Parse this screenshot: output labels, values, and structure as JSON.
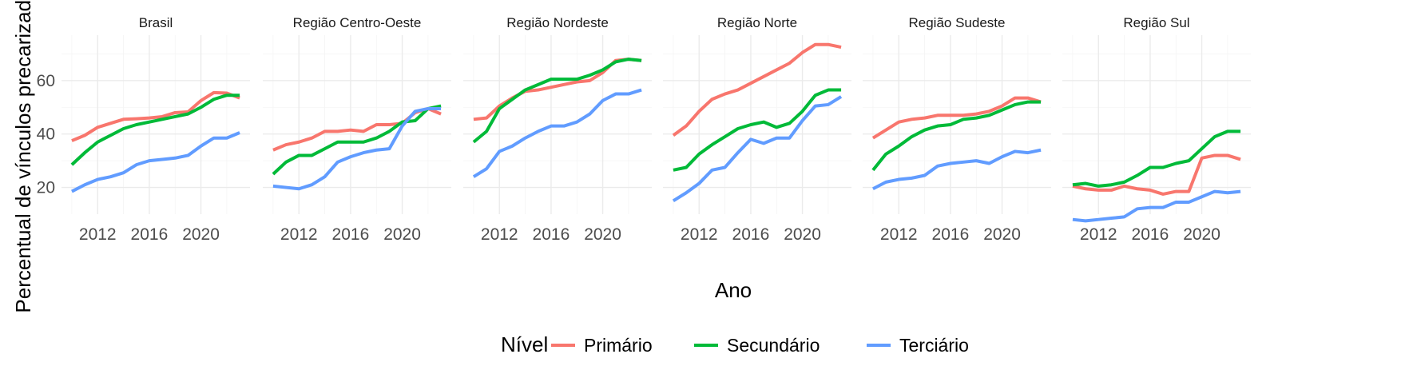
{
  "chart_data": {
    "type": "line",
    "xlabel": "Ano",
    "ylabel": "Percentual de vínculos precarizados",
    "x_ticks": [
      2012,
      2016,
      2020
    ],
    "y_ticks": [
      20,
      40,
      60
    ],
    "xlim": [
      2009.2,
      2023.8
    ],
    "ylim": [
      10,
      77
    ],
    "grid": true,
    "legend": {
      "title": "Nível",
      "position": "bottom",
      "entries": [
        {
          "name": "Primário",
          "color": "#F8766D"
        },
        {
          "name": "Secundário",
          "color": "#00BA38"
        },
        {
          "name": "Terciário",
          "color": "#619CFF"
        }
      ]
    },
    "x": [
      2010,
      2011,
      2012,
      2013,
      2014,
      2015,
      2016,
      2017,
      2018,
      2019,
      2020,
      2021,
      2022,
      2023
    ],
    "panels": [
      {
        "title": "Brasil",
        "series": [
          {
            "name": "Primário",
            "values": [
              37.5,
              39.5,
              42.5,
              44,
              45.5,
              45.7,
              46,
              46.5,
              48,
              48.3,
              52.5,
              55.5,
              55.3,
              53.5
            ]
          },
          {
            "name": "Secundário",
            "values": [
              28.5,
              33,
              37,
              39.5,
              42,
              43.5,
              44.5,
              45.5,
              46.5,
              47.5,
              50,
              53,
              54.5,
              54.5
            ]
          },
          {
            "name": "Terciário",
            "values": [
              18.5,
              21,
              23,
              24,
              25.5,
              28.5,
              30,
              30.5,
              31,
              32,
              35.5,
              38.5,
              38.5,
              40.5
            ]
          }
        ]
      },
      {
        "title": "Região Centro-Oeste",
        "series": [
          {
            "name": "Primário",
            "values": [
              34,
              36,
              37,
              38.5,
              41,
              41,
              41.5,
              41,
              43.5,
              43.5,
              44,
              48,
              49.5,
              47.5
            ]
          },
          {
            "name": "Secundário",
            "values": [
              25,
              29.5,
              32,
              32,
              34.5,
              37,
              37,
              37,
              38.5,
              41,
              44.5,
              45,
              49.5,
              50.5
            ]
          },
          {
            "name": "Terciário",
            "values": [
              20.5,
              20,
              19.5,
              21,
              24,
              29.5,
              31.5,
              33,
              34,
              34.5,
              43,
              48.5,
              49.5,
              49.5
            ]
          }
        ]
      },
      {
        "title": "Região Nordeste",
        "series": [
          {
            "name": "Primário",
            "values": [
              45.5,
              46,
              50.5,
              53.5,
              56,
              56.5,
              57.5,
              58.5,
              59.5,
              60,
              63,
              67.5,
              68,
              67.5
            ]
          },
          {
            "name": "Secundário",
            "values": [
              37,
              41,
              49.5,
              53,
              56.5,
              58.5,
              60.5,
              60.5,
              60.5,
              62,
              64,
              67,
              68,
              67.5
            ]
          },
          {
            "name": "Terciário",
            "values": [
              24,
              27,
              33.5,
              35.5,
              38.5,
              41,
              43,
              43,
              44.5,
              47.5,
              52.5,
              55,
              55,
              56.5
            ]
          }
        ]
      },
      {
        "title": "Região Norte",
        "series": [
          {
            "name": "Primário",
            "values": [
              39.5,
              43,
              48.5,
              53,
              55,
              56.5,
              59,
              61.5,
              64,
              66.5,
              70.5,
              73.5,
              73.5,
              72.5
            ]
          },
          {
            "name": "Secundário",
            "values": [
              26.5,
              27.5,
              32.5,
              36,
              39,
              42,
              43.5,
              44.5,
              42.5,
              44,
              48.5,
              54.5,
              56.5,
              56.5
            ]
          },
          {
            "name": "Terciário",
            "values": [
              15,
              18,
              21.5,
              26.5,
              27.5,
              33,
              38,
              36.5,
              38.5,
              38.5,
              45,
              50.5,
              51,
              54
            ]
          }
        ]
      },
      {
        "title": "Região Sudeste",
        "series": [
          {
            "name": "Primário",
            "values": [
              38.5,
              41.5,
              44.5,
              45.5,
              46,
              47,
              47,
              47,
              47.5,
              48.5,
              50.5,
              53.5,
              53.5,
              52
            ]
          },
          {
            "name": "Secundário",
            "values": [
              26.5,
              32.5,
              35.5,
              39,
              41.5,
              43,
              43.5,
              45.5,
              46,
              47,
              49,
              51,
              52,
              52
            ]
          },
          {
            "name": "Terciário",
            "values": [
              19.5,
              22,
              23,
              23.5,
              24.5,
              28,
              29,
              29.5,
              30,
              29,
              31.5,
              33.5,
              33,
              34
            ]
          }
        ]
      },
      {
        "title": "Região Sul",
        "series": [
          {
            "name": "Primário",
            "values": [
              20.5,
              19.5,
              19,
              19,
              20.5,
              19.5,
              19,
              17.5,
              18.5,
              18.5,
              31,
              32,
              32,
              30.5
            ]
          },
          {
            "name": "Secundário",
            "values": [
              21,
              21.5,
              20.5,
              21,
              22,
              24.5,
              27.5,
              27.5,
              29,
              30,
              34.5,
              39,
              41,
              41
            ]
          },
          {
            "name": "Terciário",
            "values": [
              8,
              7.5,
              8,
              8.5,
              9,
              12,
              12.5,
              12.5,
              14.5,
              14.5,
              16.5,
              18.5,
              18,
              18.5
            ]
          }
        ]
      }
    ]
  }
}
